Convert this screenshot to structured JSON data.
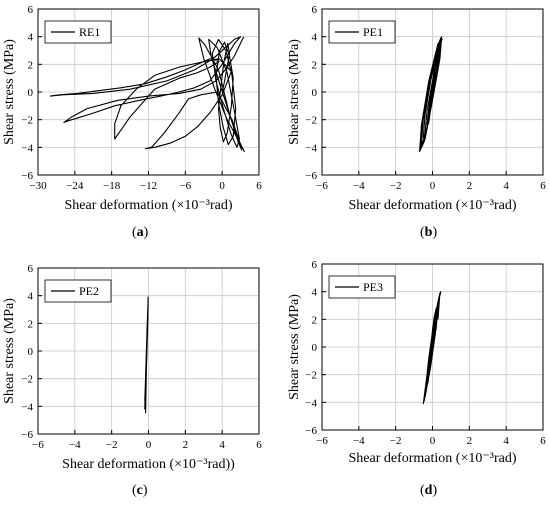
{
  "figure": {
    "panels": [
      {
        "label": "(a)",
        "letter": "a"
      },
      {
        "label": "(b)",
        "letter": "b"
      },
      {
        "label": "(c)",
        "letter": "c"
      },
      {
        "label": "(d)",
        "letter": "d"
      }
    ]
  },
  "chart_data": [
    {
      "type": "line",
      "title": "",
      "xlabel": "Shear deformation (×10⁻³rad)",
      "ylabel": "Shear stress (MPa)",
      "xlim": [
        -30,
        6
      ],
      "ylim": [
        -6,
        6
      ],
      "xticks": [
        -30,
        -24,
        -18,
        -12,
        -6,
        0,
        6
      ],
      "yticks": [
        -6,
        -4,
        -2,
        0,
        2,
        4,
        6
      ],
      "grid": true,
      "legend_position": "top-left",
      "series": [
        {
          "name": "RE1",
          "x": [
            0,
            0.4,
            0.8,
            1.2,
            0.9,
            0.3,
            -0.2,
            -0.6,
            -0.3,
            0.2,
            0.8,
            1.5,
            1.8,
            1.2,
            0.4,
            -0.4,
            -1.0,
            -0.6,
            0.2,
            1.0,
            1.8,
            2.2,
            1.6,
            0.6,
            -0.6,
            -1.6,
            -1.0,
            0.2,
            1.4,
            2.4,
            2.8,
            2.0,
            0.8,
            -0.8,
            -2.2,
            -1.8,
            -0.4,
            1.2,
            2.6,
            3.2,
            2.6,
            1.2,
            -0.6,
            -2.8,
            -3.8,
            -3.0,
            -1.2,
            0.8,
            2.8,
            3.6,
            3.0,
            1.6,
            -0.8,
            -3.5,
            -5.5,
            -7.0,
            -9.5,
            -11.5,
            -12.5,
            -11.0,
            -8.5,
            -6.0,
            -4.0,
            -2.0,
            0.0,
            1.5,
            -0.5,
            -3.0,
            -7.0,
            -11.0,
            -14.0,
            -16.5,
            -17.5,
            -17.5,
            -15.0,
            -11.0,
            -7.0,
            -4.0,
            -2.0,
            -0.5,
            -2.0,
            -4.0,
            -6.0,
            -9.0,
            -12.5,
            -16.5,
            -20.0,
            -23.5,
            -26.5,
            -28.0,
            -26.0,
            -21.0,
            -15.0,
            -9.0,
            -4.5,
            -1.5,
            0.5,
            2.0,
            3.0,
            2.0,
            0.0,
            -2.0,
            -4.5,
            -7.0,
            -10.0,
            -13.5,
            -17.5,
            -21.5,
            -24.5,
            -25.8,
            -24.5,
            -22.0,
            -17.0,
            -12.0,
            -7.0,
            -3.5,
            -1.0,
            0.5,
            2.0,
            3.5
          ],
          "y": [
            0,
            0.8,
            1.8,
            2.8,
            3.5,
            2.2,
            0.4,
            -1.2,
            -2.6,
            -3.6,
            -3.0,
            -1.0,
            1.0,
            2.6,
            3.6,
            3.0,
            1.2,
            -0.8,
            -2.6,
            -3.8,
            -3.2,
            -1.2,
            1.2,
            3.0,
            3.8,
            2.8,
            0.8,
            -1.2,
            -3.0,
            -4.0,
            -3.4,
            -1.4,
            1.4,
            3.2,
            3.8,
            2.6,
            0.6,
            -1.6,
            -3.4,
            -4.2,
            -3.6,
            -1.6,
            1.6,
            3.4,
            3.9,
            2.4,
            0.2,
            -2.0,
            -3.6,
            -4.3,
            -3.8,
            -2.0,
            0.0,
            -0.2,
            -0.5,
            -1.5,
            -3.0,
            -4.0,
            -4.1,
            -4.0,
            -3.7,
            -3.2,
            -2.5,
            -1.5,
            -0.2,
            1.5,
            2.4,
            2.2,
            1.8,
            1.2,
            0.2,
            -1.0,
            -2.3,
            -3.4,
            -1.8,
            0.2,
            1.0,
            1.4,
            1.8,
            2.2,
            2.4,
            2.0,
            1.6,
            1.1,
            0.6,
            0.3,
            0.1,
            -0.1,
            -0.2,
            -0.3,
            -0.2,
            -0.1,
            0.2,
            0.8,
            1.6,
            2.4,
            3.2,
            3.8,
            4.0,
            3.5,
            2.0,
            0.8,
            0.3,
            0.0,
            -0.3,
            -0.6,
            -1.0,
            -1.6,
            -2.0,
            -2.2,
            -1.8,
            -1.2,
            -0.6,
            -0.3,
            -0.1,
            0.2,
            0.8,
            1.6,
            2.6,
            4.0
          ]
        }
      ]
    },
    {
      "type": "line",
      "title": "",
      "xlabel": "Shear deformation (×10⁻³rad)",
      "ylabel": "Shear stress (MPa)",
      "xlim": [
        -6,
        6
      ],
      "ylim": [
        -6,
        6
      ],
      "xticks": [
        -6,
        -4,
        -2,
        0,
        2,
        4,
        6
      ],
      "yticks": [
        -6,
        -4,
        -2,
        0,
        2,
        4,
        6
      ],
      "grid": true,
      "legend_position": "top-left",
      "series": [
        {
          "name": "PE1",
          "x": [
            -0.05,
            0.0,
            0.05,
            0.1,
            0.12,
            0.05,
            -0.05,
            -0.15,
            -0.2,
            -0.1,
            0.0,
            0.15,
            0.2,
            0.1,
            -0.05,
            -0.2,
            -0.3,
            -0.2,
            0.0,
            0.2,
            0.3,
            0.2,
            0.0,
            -0.2,
            -0.4,
            -0.3,
            0.0,
            0.25,
            0.35,
            0.25,
            0.0,
            -0.3,
            -0.5,
            -0.4,
            -0.1,
            0.25,
            0.4,
            0.3,
            0.0,
            -0.35,
            -0.6,
            -0.5,
            -0.1,
            0.25,
            0.45,
            0.35,
            0.0,
            -0.4,
            -0.65,
            -0.55,
            -0.15,
            0.3,
            0.5,
            0.4,
            0.0,
            -0.45,
            -0.7,
            -0.6,
            -0.2,
            0.3,
            0.55
          ],
          "y": [
            0,
            0.6,
            1.2,
            1.8,
            1.4,
            0.2,
            -0.8,
            -1.4,
            -1.8,
            -0.8,
            0.4,
            1.8,
            2.4,
            1.4,
            -0.2,
            -1.8,
            -2.4,
            -1.2,
            0.6,
            2.2,
            2.9,
            1.6,
            -0.2,
            -2.2,
            -2.9,
            -1.4,
            0.8,
            2.6,
            3.3,
            1.8,
            -0.4,
            -2.6,
            -3.3,
            -1.6,
            0.8,
            2.9,
            3.6,
            2.0,
            -0.4,
            -3.0,
            -3.8,
            -2.0,
            0.8,
            3.2,
            3.9,
            2.2,
            -0.6,
            -3.4,
            -4.1,
            -2.2,
            0.9,
            3.4,
            4.0,
            2.4,
            -0.6,
            -3.6,
            -4.3,
            -2.4,
            0.8,
            3.5,
            3.8
          ]
        }
      ]
    },
    {
      "type": "line",
      "title": "",
      "xlabel": "Shear deformation (×10⁻³rad))",
      "ylabel": "Shear stress (MPa)",
      "xlim": [
        -6,
        6
      ],
      "ylim": [
        -6,
        6
      ],
      "xticks": [
        -6,
        -4,
        -2,
        0,
        2,
        4,
        6
      ],
      "yticks": [
        -6,
        -4,
        -2,
        0,
        2,
        4,
        6
      ],
      "grid": true,
      "legend_position": "top-left",
      "series": [
        {
          "name": "PE2",
          "x": [
            -0.1,
            -0.08,
            -0.06,
            -0.08,
            -0.12,
            -0.14,
            -0.1,
            -0.06,
            -0.04,
            -0.08,
            -0.12,
            -0.16,
            -0.12,
            -0.06,
            -0.03,
            -0.08,
            -0.14,
            -0.18,
            -0.13,
            -0.05,
            -0.02,
            -0.08,
            -0.15,
            -0.2,
            -0.14,
            -0.05,
            -0.02,
            -0.08,
            -0.16,
            -0.2,
            -0.14,
            -0.06,
            -0.02,
            -0.1,
            -0.16
          ],
          "y": [
            0,
            1.0,
            2.0,
            0.6,
            -1.0,
            -2.0,
            -0.6,
            1.2,
            2.6,
            1.0,
            -1.2,
            -2.6,
            -1.0,
            1.4,
            3.0,
            1.2,
            -1.4,
            -3.0,
            -1.2,
            1.6,
            3.4,
            1.4,
            -1.6,
            -3.6,
            -1.4,
            1.8,
            3.7,
            1.4,
            -1.8,
            -4.2,
            -1.6,
            1.8,
            3.9,
            0.0,
            -4.5
          ]
        }
      ]
    },
    {
      "type": "line",
      "title": "",
      "xlabel": "Shear deformation (×10⁻³rad)",
      "ylabel": "Shear stress (MPa)",
      "xlim": [
        -6,
        6
      ],
      "ylim": [
        -6,
        6
      ],
      "xticks": [
        -6,
        -4,
        -2,
        0,
        2,
        4,
        6
      ],
      "yticks": [
        -6,
        -4,
        -2,
        0,
        2,
        4,
        6
      ],
      "grid": true,
      "legend_position": "top-left",
      "series": [
        {
          "name": "PE3",
          "x": [
            -0.1,
            0.0,
            0.1,
            0.2,
            0.1,
            -0.05,
            -0.2,
            -0.25,
            -0.1,
            0.1,
            0.25,
            0.3,
            0.1,
            -0.1,
            -0.3,
            -0.35,
            -0.1,
            0.15,
            0.3,
            0.35,
            0.1,
            -0.15,
            -0.35,
            -0.4,
            -0.1,
            0.2,
            0.35,
            0.4,
            0.1,
            -0.2,
            -0.4,
            -0.45,
            -0.15,
            0.2,
            0.4,
            0.45,
            0.1,
            -0.2,
            -0.45,
            -0.5,
            -0.15,
            0.2,
            0.4,
            0.3
          ],
          "y": [
            0,
            1.2,
            2.2,
            2.8,
            1.4,
            -0.4,
            -2.0,
            -2.6,
            -1.0,
            1.0,
            2.8,
            3.2,
            1.6,
            -0.6,
            -2.6,
            -3.2,
            -1.2,
            1.2,
            3.2,
            3.6,
            1.8,
            -0.8,
            -3.0,
            -3.6,
            -1.4,
            1.4,
            3.5,
            3.9,
            2.0,
            -0.8,
            -3.3,
            -3.9,
            -1.6,
            1.6,
            3.8,
            4.0,
            2.0,
            -1.0,
            -3.6,
            -4.1,
            -1.8,
            1.6,
            3.9,
            2.0
          ]
        }
      ]
    }
  ]
}
